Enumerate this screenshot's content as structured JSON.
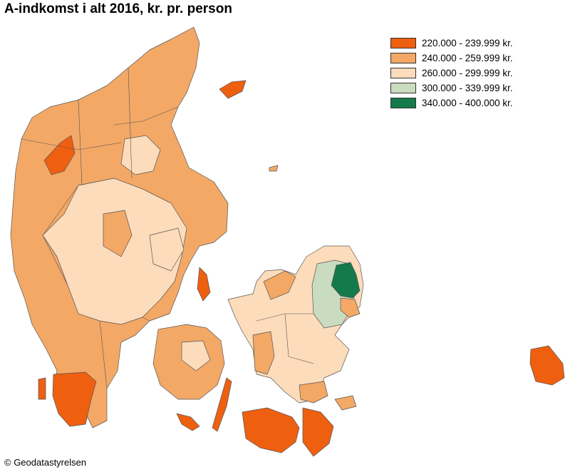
{
  "title": "A-indkomst i alt 2016, kr. pr. person",
  "legend": [
    {
      "label": "220.000 - 239.999 kr.",
      "color": "#ef5f10"
    },
    {
      "label": "240.000 - 259.999 kr.",
      "color": "#f3a866"
    },
    {
      "label": "260.000 - 299.999 kr.",
      "color": "#fcdcbb"
    },
    {
      "label": "300.000 - 339.999 kr.",
      "color": "#cadcbf"
    },
    {
      "label": "340.000 - 400.000 kr.",
      "color": "#157a4b"
    }
  ],
  "credit": "© Geodatastyrelsen"
}
